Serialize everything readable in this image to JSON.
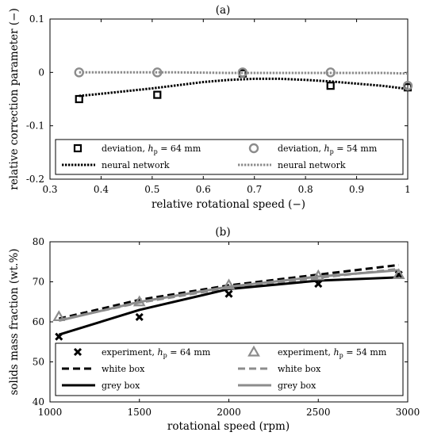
{
  "figure": {
    "panels": [
      "(a)",
      "(b)"
    ]
  },
  "chart_data": [
    {
      "type": "scatter",
      "title": "(a)",
      "xlabel": "relative rotational speed (−)",
      "ylabel": "relative correction parameter (−)",
      "xlim": [
        0.3,
        1.0
      ],
      "ylim": [
        -0.2,
        0.1
      ],
      "xticks": [
        "0.3",
        "0.4",
        "0.5",
        "0.6",
        "0.7",
        "0.8",
        "0.9",
        "1"
      ],
      "xtick_values": [
        0.3,
        0.4,
        0.5,
        0.6,
        0.7,
        0.8,
        0.9,
        1.0
      ],
      "yticks": [
        "-0.2",
        "-0.1",
        "0",
        "0.1"
      ],
      "ytick_values": [
        -0.2,
        -0.1,
        0,
        0.1
      ],
      "grid": false,
      "legend_position": "bottom",
      "series": [
        {
          "name": "deviation, hp = 64 mm",
          "label_main": "deviation, ",
          "label_var": "h",
          "label_sub": "p",
          "label_rest": " = 64 mm",
          "kind": "marker",
          "marker": "square",
          "color": "#000000",
          "x": [
            0.357,
            0.51,
            0.677,
            0.849,
            1.0
          ],
          "y": [
            -0.05,
            -0.042,
            -0.002,
            -0.025,
            -0.028
          ]
        },
        {
          "name": "deviation, hp = 54 mm",
          "label_main": "deviation, ",
          "label_var": "h",
          "label_sub": "p",
          "label_rest": " = 54 mm",
          "kind": "marker",
          "marker": "circle",
          "color": "#8c8c8c",
          "x": [
            0.357,
            0.51,
            0.677,
            0.849,
            1.0
          ],
          "y": [
            0.0,
            0.0,
            0.0,
            0.0,
            -0.025
          ]
        },
        {
          "name": "neural network",
          "label_main": "neural network",
          "kind": "line",
          "dash": "dotted",
          "color": "#000000",
          "x": [
            0.357,
            0.4,
            0.45,
            0.5,
            0.55,
            0.6,
            0.65,
            0.7,
            0.75,
            0.8,
            0.85,
            0.9,
            0.95,
            1.0
          ],
          "y": [
            -0.044,
            -0.04,
            -0.035,
            -0.03,
            -0.024,
            -0.018,
            -0.014,
            -0.012,
            -0.012,
            -0.014,
            -0.017,
            -0.021,
            -0.025,
            -0.031
          ]
        },
        {
          "name": "neural network",
          "label_main": "neural network",
          "kind": "line",
          "dash": "dotted",
          "color": "#8c8c8c",
          "x": [
            0.357,
            0.45,
            0.55,
            0.65,
            0.75,
            0.85,
            0.95,
            1.0
          ],
          "y": [
            0.0,
            0.0,
            0.0,
            -0.001,
            -0.001,
            -0.001,
            -0.001,
            -0.002
          ]
        }
      ]
    },
    {
      "type": "line",
      "title": "(b)",
      "xlabel": "rotational speed (rpm)",
      "ylabel": "solids mass fraction (wt.%)",
      "xlim": [
        1000,
        3000
      ],
      "ylim": [
        40,
        80
      ],
      "xticks": [
        "1000",
        "1500",
        "2000",
        "2500",
        "3000"
      ],
      "xtick_values": [
        1000,
        1500,
        2000,
        2500,
        3000
      ],
      "yticks": [
        "40",
        "50",
        "60",
        "70",
        "80"
      ],
      "ytick_values": [
        40,
        50,
        60,
        70,
        80
      ],
      "grid": false,
      "legend_position": "bottom",
      "series": [
        {
          "name": "experiment, hp = 64 mm",
          "label_main": "experiment, ",
          "label_var": "h",
          "label_sub": "p",
          "label_rest": " = 64 mm",
          "kind": "marker",
          "marker": "x",
          "color": "#000000",
          "x": [
            1050,
            1500,
            2000,
            2500,
            2950
          ],
          "y": [
            56.3,
            61.2,
            67.0,
            69.5,
            71.8
          ]
        },
        {
          "name": "experiment, hp = 54 mm",
          "label_main": "experiment, ",
          "label_var": "h",
          "label_sub": "p",
          "label_rest": " = 54 mm",
          "kind": "marker",
          "marker": "triangle",
          "color": "#8c8c8c",
          "x": [
            1050,
            1500,
            2000,
            2500,
            2950
          ],
          "y": [
            61.3,
            65.0,
            69.2,
            71.5,
            71.8
          ]
        },
        {
          "name": "white box",
          "label_main": "white box",
          "kind": "line",
          "dash": "dashed",
          "color": "#000000",
          "x": [
            1050,
            1500,
            2000,
            2500,
            2950
          ],
          "y": [
            60.8,
            65.5,
            69.1,
            71.8,
            74.2
          ]
        },
        {
          "name": "white box",
          "label_main": "white box",
          "kind": "line",
          "dash": "dashed",
          "color": "#8c8c8c",
          "x": [
            1050,
            1500,
            2000,
            2500,
            2950
          ],
          "y": [
            60.5,
            64.8,
            68.5,
            71.0,
            73.2
          ]
        },
        {
          "name": "grey box",
          "label_main": "grey box",
          "kind": "line",
          "dash": "solid",
          "color": "#000000",
          "x": [
            1050,
            1500,
            2000,
            2500,
            2950
          ],
          "y": [
            56.8,
            63.0,
            68.2,
            70.3,
            71.1
          ]
        },
        {
          "name": "grey box",
          "label_main": "grey box",
          "kind": "line",
          "dash": "solid",
          "color": "#8c8c8c",
          "x": [
            1050,
            1500,
            2000,
            2500,
            2950
          ],
          "y": [
            60.3,
            65.0,
            68.8,
            71.3,
            72.9
          ]
        }
      ]
    }
  ]
}
